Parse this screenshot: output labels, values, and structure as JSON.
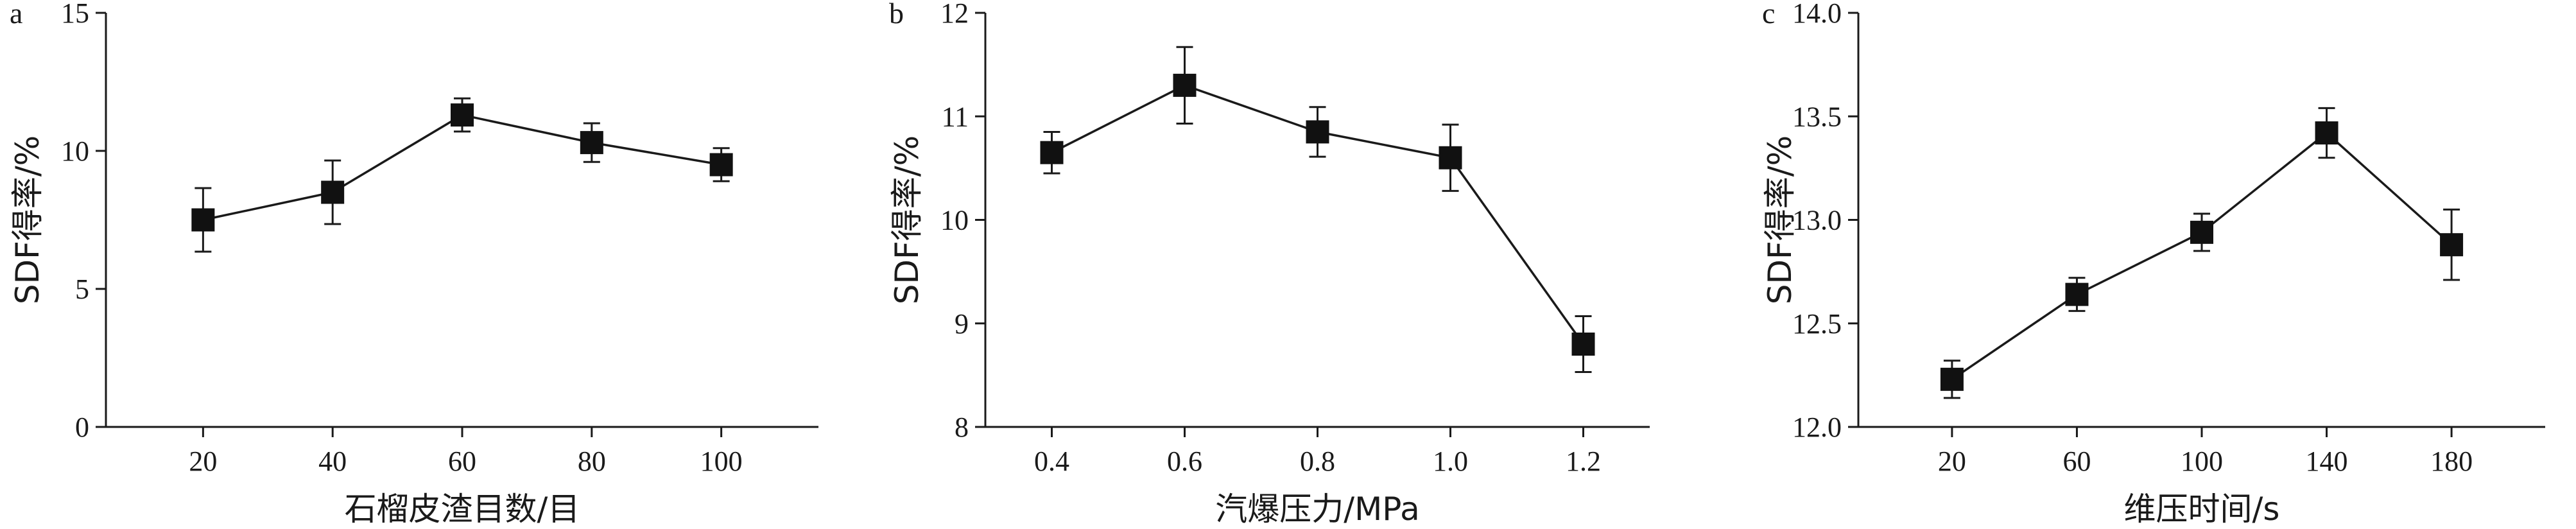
{
  "chart_data": [
    {
      "type": "line",
      "panel_label": "a",
      "xlabel": "石榴皮渣目数/目",
      "ylabel": "SDF得率/%",
      "x": [
        20,
        40,
        60,
        80,
        100
      ],
      "x_tick_labels": [
        "20",
        "40",
        "60",
        "80",
        "100"
      ],
      "xlim": [
        5,
        115
      ],
      "y_ticks": [
        0,
        5,
        10,
        15
      ],
      "y_tick_labels": [
        "0",
        "5",
        "10",
        "15"
      ],
      "ylim": [
        0,
        15
      ],
      "series": [
        {
          "values": [
            7.5,
            8.5,
            11.3,
            10.3,
            9.5
          ],
          "errors": [
            1.15,
            1.15,
            0.6,
            0.7,
            0.6
          ]
        }
      ],
      "grid": false
    },
    {
      "type": "line",
      "panel_label": "b",
      "xlabel": "汽爆压力/MPa",
      "ylabel": "SDF得率/%",
      "x": [
        0.4,
        0.6,
        0.8,
        1.0,
        1.2
      ],
      "x_tick_labels": [
        "0.4",
        "0.6",
        "0.8",
        "1.0",
        "1.2"
      ],
      "xlim": [
        0.3,
        1.3
      ],
      "y_ticks": [
        8,
        9,
        10,
        11,
        12
      ],
      "y_tick_labels": [
        "8",
        "9",
        "10",
        "11",
        "12"
      ],
      "ylim": [
        8,
        12
      ],
      "series": [
        {
          "values": [
            10.65,
            11.3,
            10.85,
            10.6,
            8.8
          ],
          "errors": [
            0.2,
            0.37,
            0.24,
            0.32,
            0.27
          ]
        }
      ],
      "grid": false
    },
    {
      "type": "line",
      "panel_label": "c",
      "xlabel": "维压时间/s",
      "ylabel": "SDF得率/%",
      "x": [
        20,
        60,
        100,
        140,
        180
      ],
      "x_tick_labels": [
        "20",
        "60",
        "100",
        "140",
        "180"
      ],
      "xlim": [
        -10,
        210
      ],
      "y_ticks": [
        12.0,
        12.5,
        13.0,
        13.5,
        14.0
      ],
      "y_tick_labels": [
        "12.0",
        "12.5",
        "13.0",
        "13.5",
        "14.0"
      ],
      "ylim": [
        12.0,
        14.0
      ],
      "series": [
        {
          "values": [
            12.23,
            12.64,
            12.94,
            13.42,
            12.88
          ],
          "errors": [
            0.09,
            0.08,
            0.09,
            0.12,
            0.17
          ]
        }
      ],
      "grid": false
    }
  ]
}
